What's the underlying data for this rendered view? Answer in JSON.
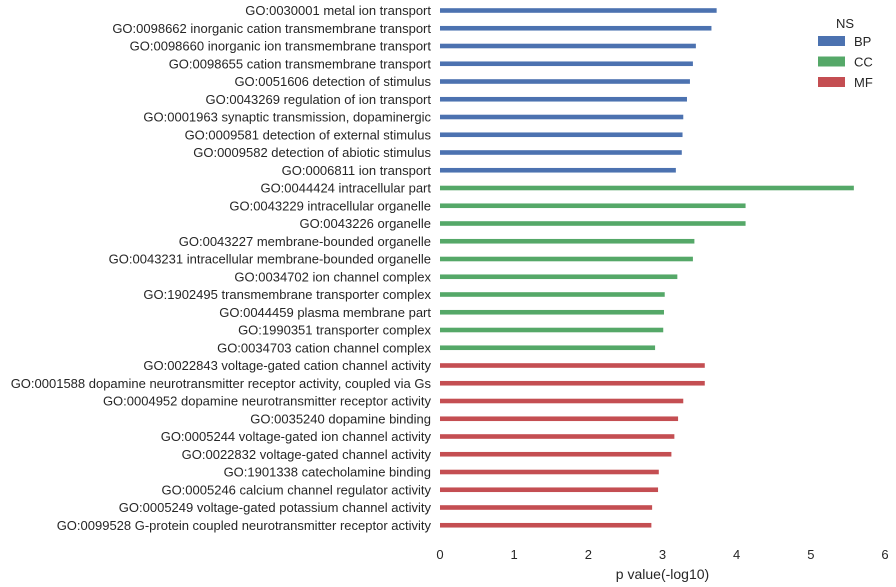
{
  "chart_data": {
    "type": "bar",
    "orientation": "horizontal",
    "xlabel": "p value(-log10)",
    "ylabel": "",
    "xlim": [
      0,
      6
    ],
    "xticks": [
      0,
      1,
      2,
      3,
      4,
      5,
      6
    ],
    "grid": false,
    "legend": {
      "title": "NS",
      "placement": "top-right",
      "entries": [
        {
          "name": "BP",
          "color": "#4c72b0"
        },
        {
          "name": "CC",
          "color": "#55a868"
        },
        {
          "name": "MF",
          "color": "#c44e52"
        }
      ]
    },
    "categories": [
      "GO:0030001 metal ion transport",
      "GO:0098662 inorganic cation transmembrane transport",
      "GO:0098660 inorganic ion transmembrane transport",
      "GO:0098655 cation transmembrane transport",
      "GO:0051606 detection of stimulus",
      "GO:0043269 regulation of ion transport",
      "GO:0001963 synaptic transmission, dopaminergic",
      "GO:0009581 detection of external stimulus",
      "GO:0009582 detection of abiotic stimulus",
      "GO:0006811 ion transport",
      "GO:0044424 intracellular part",
      "GO:0043229 intracellular organelle",
      "GO:0043226 organelle",
      "GO:0043227 membrane-bounded organelle",
      "GO:0043231 intracellular membrane-bounded organelle",
      "GO:0034702 ion channel complex",
      "GO:1902495 transmembrane transporter complex",
      "GO:0044459 plasma membrane part",
      "GO:1990351 transporter complex",
      "GO:0034703 cation channel complex",
      "GO:0022843 voltage-gated cation channel activity",
      "GO:0001588 dopamine neurotransmitter receptor activity, coupled via Gs",
      "GO:0004952 dopamine neurotransmitter receptor activity",
      "GO:0035240 dopamine binding",
      "GO:0005244 voltage-gated ion channel activity",
      "GO:0022832 voltage-gated channel activity",
      "GO:1901338 catecholamine binding",
      "GO:0005246 calcium channel regulator activity",
      "GO:0005249 voltage-gated potassium channel activity",
      "GO:0099528 G-protein coupled neurotransmitter receptor activity"
    ],
    "values": [
      3.73,
      3.66,
      3.45,
      3.41,
      3.37,
      3.33,
      3.28,
      3.27,
      3.26,
      3.18,
      5.58,
      4.12,
      4.12,
      3.43,
      3.41,
      3.2,
      3.03,
      3.02,
      3.01,
      2.9,
      3.57,
      3.57,
      3.28,
      3.21,
      3.16,
      3.12,
      2.95,
      2.94,
      2.86,
      2.85
    ],
    "groups": [
      "BP",
      "BP",
      "BP",
      "BP",
      "BP",
      "BP",
      "BP",
      "BP",
      "BP",
      "BP",
      "CC",
      "CC",
      "CC",
      "CC",
      "CC",
      "CC",
      "CC",
      "CC",
      "CC",
      "CC",
      "MF",
      "MF",
      "MF",
      "MF",
      "MF",
      "MF",
      "MF",
      "MF",
      "MF",
      "MF"
    ]
  }
}
